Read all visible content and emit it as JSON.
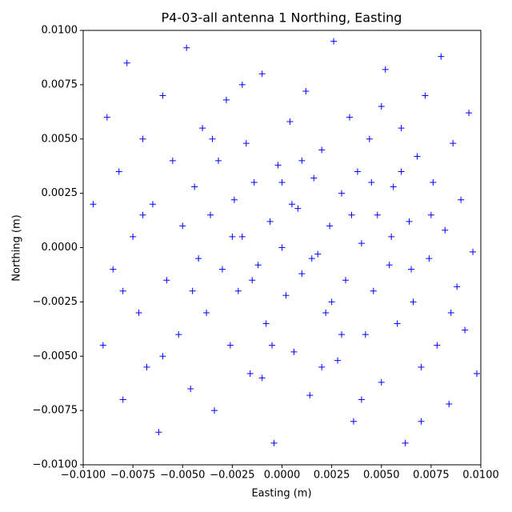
{
  "chart_data": {
    "type": "scatter",
    "title": "P4-03-all antenna 1 Northing, Easting",
    "x_label": "Easting (m)",
    "y_label": "Northing (m)",
    "color": "#0000ff",
    "marker": "+",
    "x": [
      -0.0095,
      -0.009,
      -0.0088,
      -0.0085,
      -0.0082,
      -0.008,
      -0.0078,
      -0.0075,
      -0.0072,
      -0.007,
      -0.0068,
      -0.0065,
      -0.0062,
      -0.006,
      -0.0058,
      -0.0055,
      -0.0052,
      -0.005,
      -0.0048,
      -0.0046,
      -0.0044,
      -0.0042,
      -0.004,
      -0.0038,
      -0.0036,
      -0.0034,
      -0.0032,
      -0.003,
      -0.0028,
      -0.0026,
      -0.0024,
      -0.0022,
      -0.002,
      -0.0018,
      -0.0016,
      -0.0014,
      -0.0012,
      -0.001,
      -0.0008,
      -0.0006,
      -0.0004,
      -0.0002,
      0,
      0.0002,
      0.0004,
      0.0006,
      0.0008,
      0.001,
      0.0012,
      0.0014,
      0.0016,
      0.0018,
      0.002,
      0.0022,
      0.0024,
      0.0026,
      0.0028,
      0.003,
      0.0032,
      0.0034,
      0.0036,
      0.0038,
      0.004,
      0.0042,
      0.0044,
      0.0046,
      0.0048,
      0.005,
      0.0052,
      0.0054,
      0.0056,
      0.0058,
      0.006,
      0.0062,
      0.0064,
      0.0066,
      0.0068,
      0.007,
      0.0072,
      0.0074,
      0.0076,
      0.0078,
      0.008,
      0.0082,
      0.0084,
      0.0086,
      0.0088,
      0.009,
      0.0092,
      0.0094,
      0.0096,
      0.0098,
      -0.0025,
      -0.0015,
      0.0005,
      0.0015,
      0.0025,
      0.0035,
      0.0045,
      -0.0005,
      0.001,
      0.003,
      -0.0035,
      0.0055,
      0.0065,
      -0.0045,
      0,
      0.002,
      0.004,
      -0.001,
      0.006,
      0.0075,
      0.0085,
      -0.006,
      -0.007,
      -0.008,
      0.005,
      -0.002,
      0.007
    ],
    "values": [
      0.002,
      -0.0045,
      0.006,
      -0.001,
      0.0035,
      -0.007,
      0.0085,
      0.0005,
      -0.003,
      0.005,
      -0.0055,
      0.002,
      -0.0085,
      0.007,
      -0.0015,
      0.004,
      -0.004,
      0.001,
      0.0092,
      -0.0065,
      0.0028,
      -0.0005,
      0.0055,
      -0.003,
      0.0015,
      -0.0075,
      0.004,
      -0.001,
      0.0068,
      -0.0045,
      0.0022,
      -0.002,
      0.0005,
      0.0048,
      -0.0058,
      0.003,
      -0.0008,
      0.008,
      -0.0035,
      0.0012,
      -0.009,
      0.0038,
      0,
      -0.0022,
      0.0058,
      -0.0048,
      0.0018,
      -0.0012,
      0.0072,
      -0.0068,
      0.0032,
      -0.0003,
      0.0045,
      -0.003,
      0.001,
      0.0095,
      -0.0052,
      0.0025,
      -0.0015,
      0.006,
      -0.008,
      0.0035,
      0.0002,
      -0.004,
      0.005,
      -0.002,
      0.0015,
      -0.0062,
      0.0082,
      -0.0008,
      0.0028,
      -0.0035,
      0.0055,
      -0.009,
      0.0012,
      -0.0025,
      0.0042,
      -0.0055,
      0.007,
      -0.0005,
      0.003,
      -0.0045,
      0.0088,
      0.0008,
      -0.0072,
      0.0048,
      -0.0018,
      0.0022,
      -0.0038,
      0.0062,
      -0.0002,
      -0.0058,
      0.0005,
      -0.0015,
      0.002,
      -0.0005,
      -0.0025,
      0.0015,
      0.003,
      -0.0045,
      0.004,
      -0.004,
      0.005,
      0.0005,
      -0.001,
      -0.002,
      0.003,
      -0.0055,
      -0.007,
      -0.006,
      0.0035,
      0.0015,
      -0.003,
      -0.005,
      0.0015,
      -0.002,
      0.0065,
      0.0075,
      -0.008
    ],
    "xlim": [
      -0.01,
      0.01
    ],
    "ylim": [
      -0.01,
      0.01
    ],
    "xticks": [
      {
        "value": -0.01,
        "label": "−0.0100"
      },
      {
        "value": -0.0075,
        "label": "−0.0075"
      },
      {
        "value": -0.005,
        "label": "−0.0050"
      },
      {
        "value": -0.0025,
        "label": "−0.0025"
      },
      {
        "value": 0,
        "label": "0.0000"
      },
      {
        "value": 0.0025,
        "label": "0.0025"
      },
      {
        "value": 0.005,
        "label": "0.0050"
      },
      {
        "value": 0.0075,
        "label": "0.0075"
      },
      {
        "value": 0.01,
        "label": "0.0100"
      }
    ],
    "yticks": [
      {
        "value": -0.01,
        "label": "−0.0100"
      },
      {
        "value": -0.0075,
        "label": "−0.0075"
      },
      {
        "value": -0.005,
        "label": "−0.0050"
      },
      {
        "value": -0.0025,
        "label": "−0.0025"
      },
      {
        "value": 0,
        "label": "0.0000"
      },
      {
        "value": 0.0025,
        "label": "0.0025"
      },
      {
        "value": 0.005,
        "label": "0.0050"
      },
      {
        "value": 0.0075,
        "label": "0.0075"
      },
      {
        "value": 0.01,
        "label": "0.0100"
      }
    ]
  }
}
